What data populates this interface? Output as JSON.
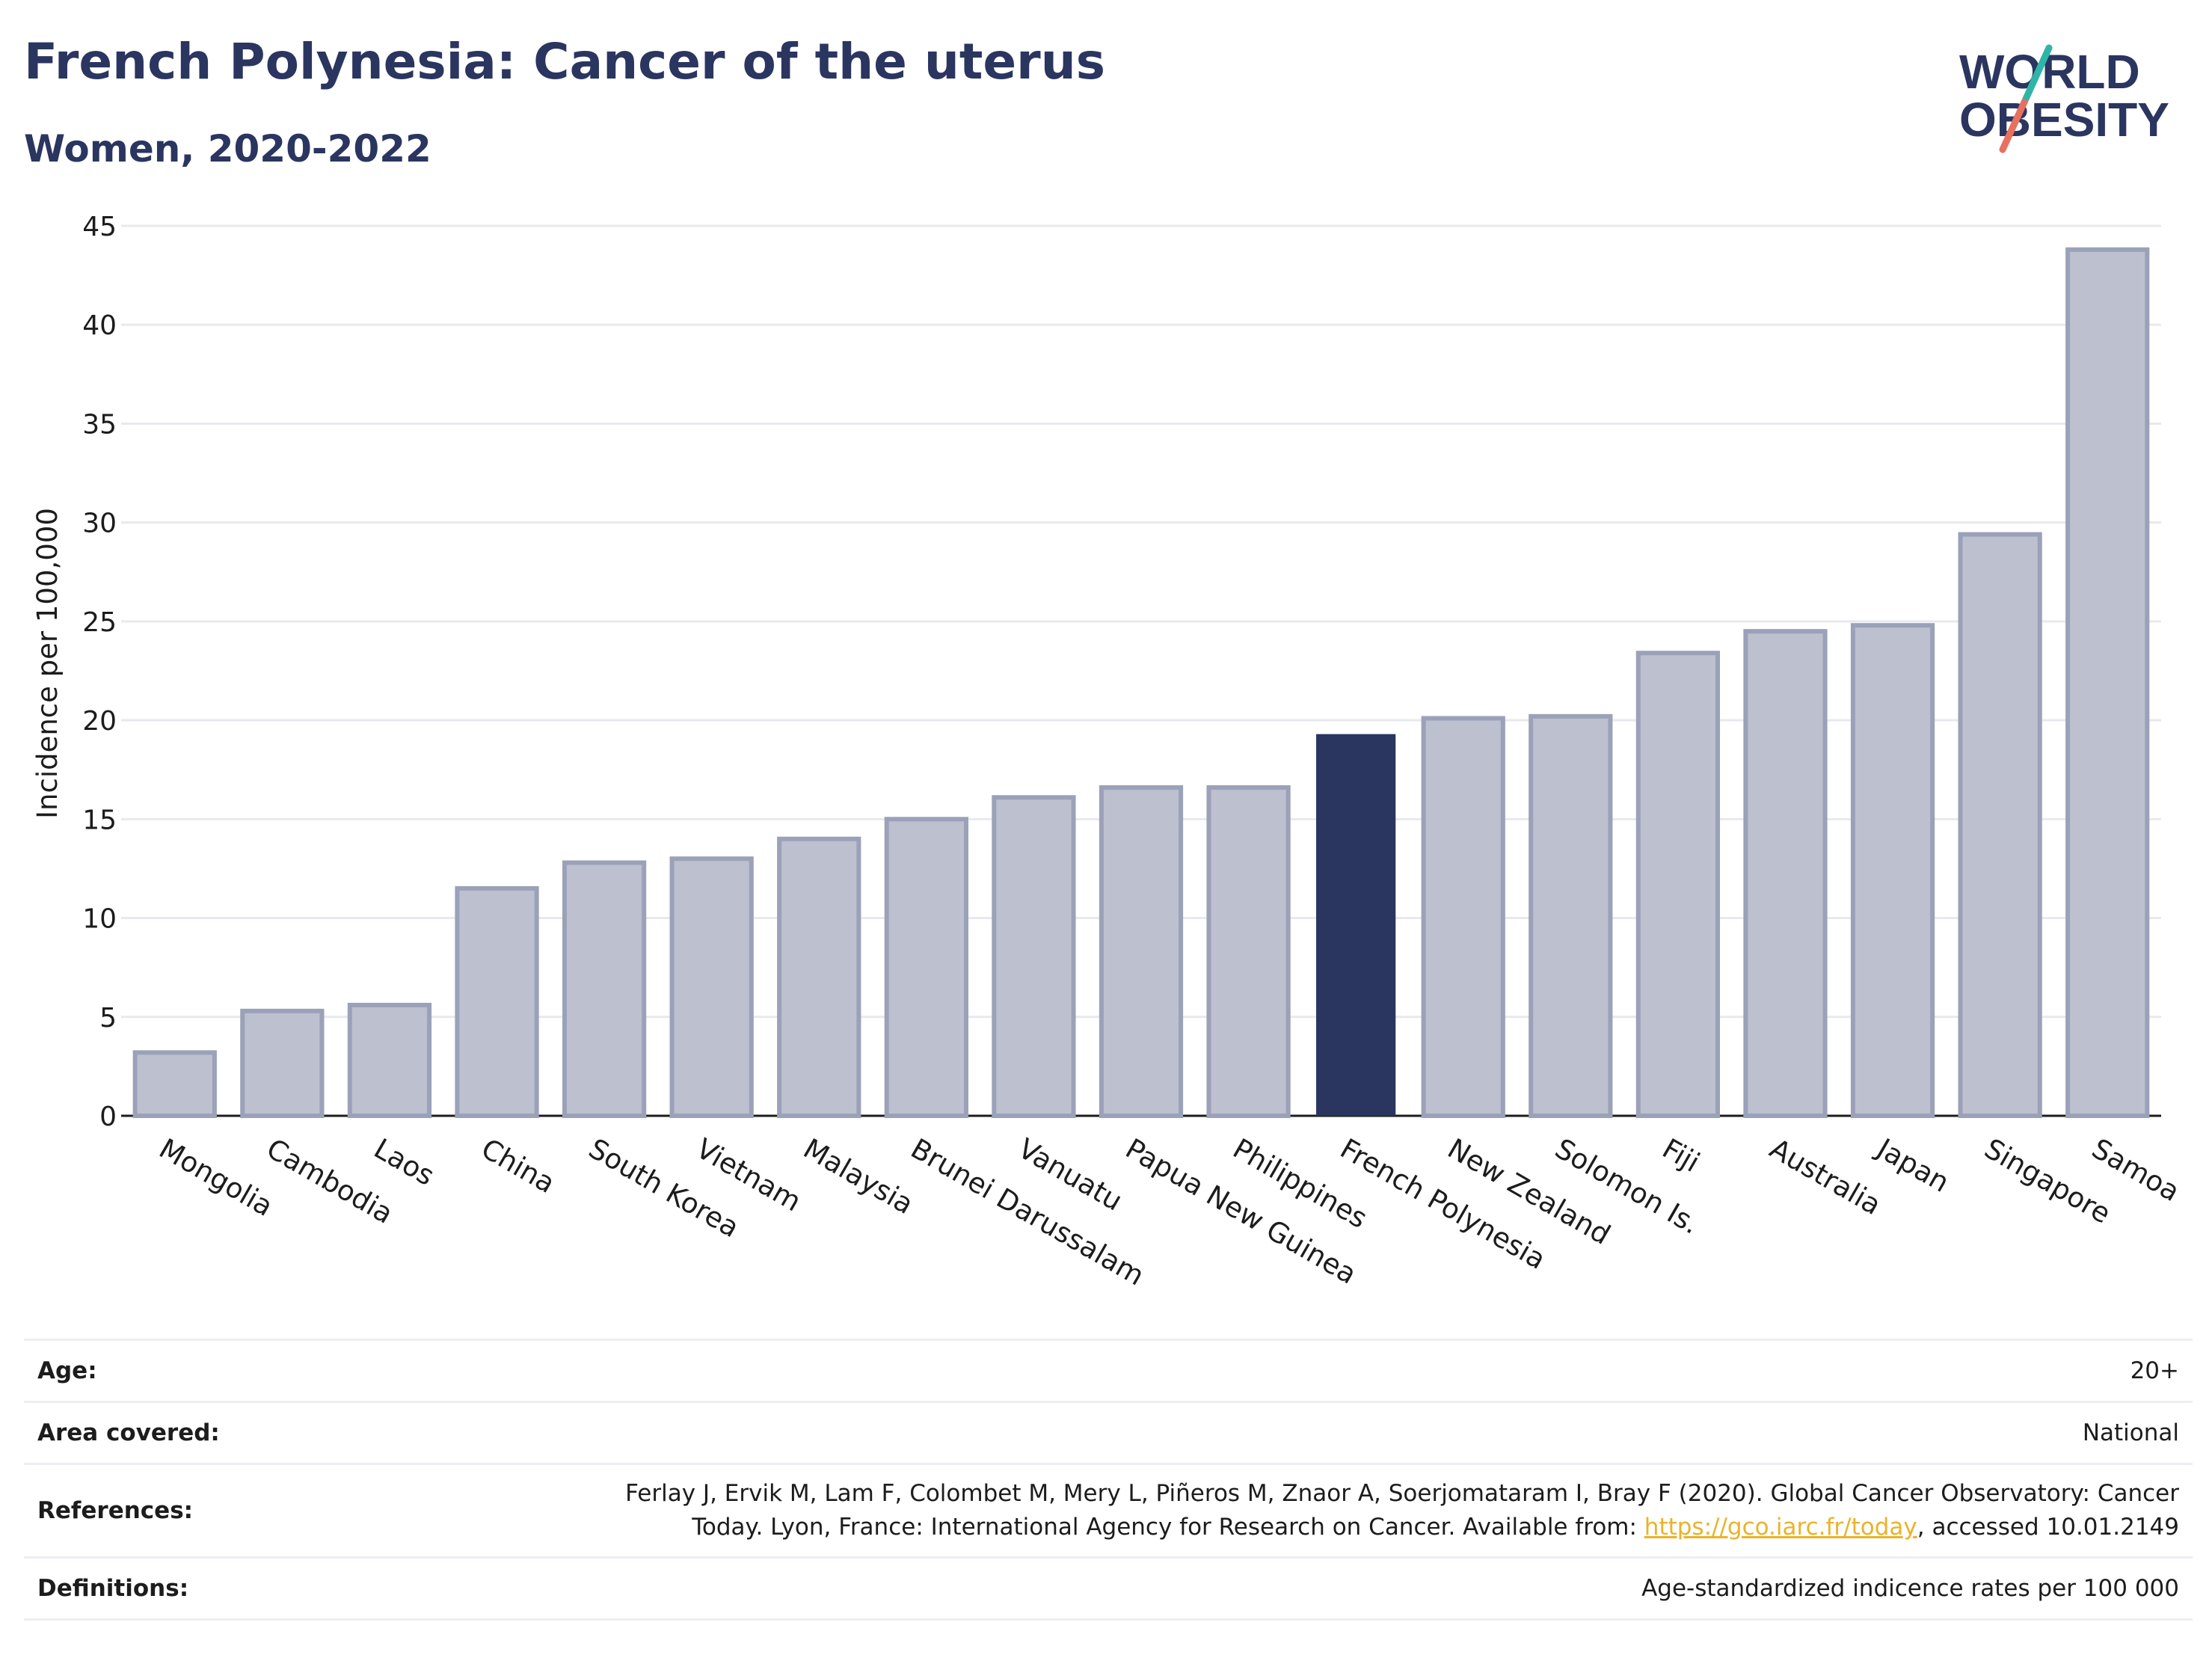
{
  "title": "French Polynesia: Cancer of the uterus",
  "subtitle": "Women, 2020-2022",
  "logo": {
    "line1": "WORLD",
    "line2": "OBESITY"
  },
  "chart_data": {
    "type": "bar",
    "title": "French Polynesia: Cancer of the uterus",
    "subtitle": "Women, 2020-2022",
    "ylabel": "Incidence per 100,000",
    "xlabel": "",
    "ylim": [
      0,
      45
    ],
    "yticks": [
      0,
      5,
      10,
      15,
      20,
      25,
      30,
      35,
      40,
      45
    ],
    "grid": true,
    "highlight": "French Polynesia",
    "categories": [
      "Mongolia",
      "Cambodia",
      "Laos",
      "China",
      "South Korea",
      "Vietnam",
      "Malaysia",
      "Brunei Darussalam",
      "Vanuatu",
      "Papua New Guinea",
      "Philippines",
      "French Polynesia",
      "New Zealand",
      "Solomon Is.",
      "Fiji",
      "Australia",
      "Japan",
      "Singapore",
      "Samoa"
    ],
    "values": [
      3.2,
      5.3,
      5.6,
      11.5,
      12.8,
      13.0,
      14.0,
      15.0,
      16.1,
      16.6,
      16.6,
      19.3,
      20.1,
      20.2,
      23.4,
      24.5,
      24.8,
      29.4,
      43.8
    ],
    "colors": {
      "bar": "#bcc0cf",
      "bar_border": "#9ba1b8",
      "highlight": "#2a3560",
      "grid": "#e8e9ee",
      "axis": "#1c1c1c"
    }
  },
  "info": {
    "age_label": "Age:",
    "age_value": "20+",
    "area_label": "Area covered:",
    "area_value": "National",
    "references_label": "References:",
    "references_text_line1": "Ferlay J, Ervik M, Lam F, Colombet M, Mery L, Piñeros M, Znaor A, Soerjomataram I, Bray F (2020). Global Cancer Observatory: Cancer",
    "references_text_line2_pre": "Today. Lyon, France: International Agency for Research on Cancer. Available from: ",
    "references_link": "https://gco.iarc.fr/today",
    "references_text_line2_post": ", accessed 10.01.2149",
    "definitions_label": "Definitions:",
    "definitions_value": "Age-standardized indicence rates per 100 000"
  }
}
